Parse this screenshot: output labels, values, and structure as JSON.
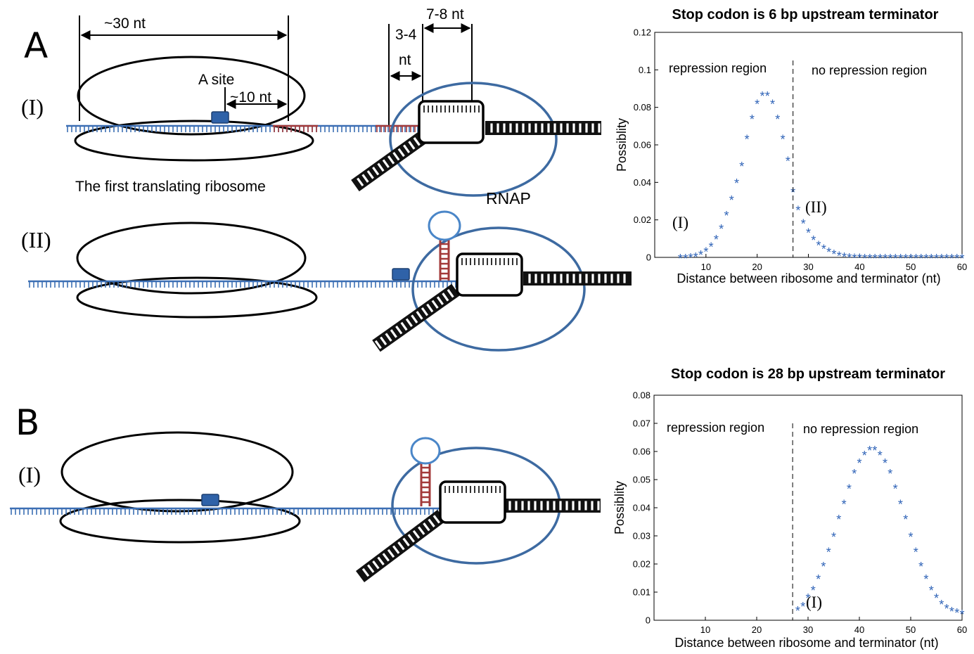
{
  "colors": {
    "strand": "#3c6fb4",
    "stem": "#a33a3a",
    "rnap": "#3d6aa1",
    "block": "#2f62a8",
    "dna": "#111111",
    "point": "#2f63b7"
  },
  "panelA": {
    "letter": "A",
    "row1_label": "(I)",
    "row2_label": "(II)",
    "dim_30": "~30 nt",
    "dim_10": "~10 nt",
    "a_site": "A site",
    "dim_34_top": "3-4",
    "dim_34_bottom": "nt",
    "dim_78": "7-8 nt",
    "ribosome_caption": "The first translating ribosome",
    "rnap_label": "RNAP"
  },
  "panelB": {
    "letter": "B",
    "row1_label": "(I)"
  },
  "chart_data": [
    {
      "type": "scatter",
      "title": "Stop codon is 6 bp upstream terminator",
      "xlabel": "Distance between ribosome and terminator (nt)",
      "ylabel": "Possiblity",
      "xlim": [
        0,
        60
      ],
      "ylim": [
        0,
        0.12
      ],
      "xticks": [
        10,
        20,
        30,
        40,
        50,
        60
      ],
      "yticks": [
        0,
        0.02,
        0.04,
        0.06,
        0.08,
        0.1,
        0.12
      ],
      "ytick_labels": [
        "0",
        "0.02",
        "0.04",
        "0.06",
        "0.08",
        "0.1",
        "0.12"
      ],
      "threshold_x": 27,
      "left_region": "repression region",
      "right_region": "no repression region",
      "mark_low": "(I)",
      "mark_high": "(II)",
      "series": [
        {
          "marker": "*",
          "x": [
            5,
            6,
            7,
            8,
            9,
            10,
            11,
            12,
            13,
            14,
            15,
            16,
            17,
            18,
            19,
            20,
            21,
            22,
            23,
            24,
            25,
            26,
            27,
            28,
            29,
            30,
            31,
            32,
            33,
            34,
            35,
            36,
            37,
            38,
            39,
            40,
            41,
            42,
            43,
            44,
            45,
            46,
            47,
            48,
            49,
            50,
            51,
            52,
            53,
            54,
            55,
            56,
            57,
            58,
            59,
            60
          ],
          "y": [
            0.0,
            0.0,
            0.0003,
            0.0008,
            0.0018,
            0.0035,
            0.0062,
            0.0102,
            0.0158,
            0.0228,
            0.0311,
            0.0402,
            0.0492,
            0.0636,
            0.0742,
            0.0824,
            0.0866,
            0.0866,
            0.0824,
            0.0742,
            0.0636,
            0.052,
            0.0352,
            0.0256,
            0.0185,
            0.0136,
            0.0098,
            0.007,
            0.005,
            0.0034,
            0.0022,
            0.0014,
            0.0008,
            0.0004,
            0.0002,
            0.0001,
            0,
            0,
            0,
            0,
            0,
            0,
            0,
            0,
            0,
            0,
            0,
            0,
            0,
            0,
            0,
            0,
            0,
            0,
            0,
            0
          ]
        }
      ]
    },
    {
      "type": "scatter",
      "title": "Stop codon is 28 bp upstream terminator",
      "xlabel": "Distance between ribosome and terminator (nt)",
      "ylabel": "Possiblity",
      "xlim": [
        0,
        60
      ],
      "ylim": [
        0,
        0.08
      ],
      "xticks": [
        10,
        20,
        30,
        40,
        50,
        60
      ],
      "yticks": [
        0,
        0.01,
        0.02,
        0.03,
        0.04,
        0.05,
        0.06,
        0.07,
        0.08
      ],
      "ytick_labels": [
        "0",
        "0.01",
        "0.02",
        "0.03",
        "0.04",
        "0.05",
        "0.06",
        "0.07",
        "0.08"
      ],
      "threshold_x": 27,
      "left_region": "repression region",
      "right_region": "no repression region",
      "mark_low": "(I)",
      "series": [
        {
          "marker": "*",
          "x": [
            28,
            29,
            30,
            31,
            32,
            33,
            34,
            35,
            36,
            37,
            38,
            39,
            40,
            41,
            42,
            43,
            44,
            45,
            46,
            47,
            48,
            49,
            50,
            51,
            52,
            53,
            54,
            55,
            56,
            57,
            58,
            59,
            60
          ],
          "y": [
            0.0038,
            0.0052,
            0.0082,
            0.011,
            0.015,
            0.0195,
            0.0246,
            0.03,
            0.0363,
            0.0416,
            0.0471,
            0.0525,
            0.0563,
            0.059,
            0.0607,
            0.0607,
            0.059,
            0.0563,
            0.0525,
            0.0471,
            0.0416,
            0.0363,
            0.03,
            0.0246,
            0.0195,
            0.015,
            0.011,
            0.0082,
            0.006,
            0.0045,
            0.0035,
            0.003,
            0.0025
          ]
        }
      ]
    }
  ]
}
